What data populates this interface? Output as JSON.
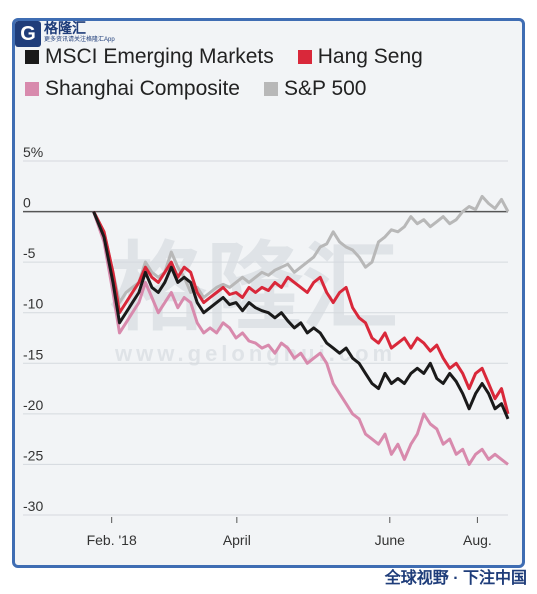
{
  "brand": {
    "logo_letter": "G",
    "name": "格隆汇",
    "tagline": "更多资讯请关注格隆汇App",
    "credit": "全球视野 · 下注中国"
  },
  "watermark": {
    "main": "格隆汇",
    "sub": "www.gelonghui.com"
  },
  "legend": [
    {
      "name": "MSCI Emerging Markets",
      "color": "#1a1a1a"
    },
    {
      "name": "Hang Seng",
      "color": "#d9283a"
    },
    {
      "name": "Shanghai Composite",
      "color": "#d88aad"
    },
    {
      "name": "S&P 500",
      "color": "#b8b8b8"
    }
  ],
  "chart_data": {
    "type": "line",
    "x_unit": "week",
    "x_tick_labels": [
      "Feb. '18",
      "April",
      "June",
      "Aug."
    ],
    "x_tick_positions": [
      1,
      9,
      18,
      27
    ],
    "y_tick_labels": [
      "5%",
      "0",
      "-5",
      "-10",
      "-15",
      "-20",
      "-25",
      "-30"
    ],
    "y_tick_values": [
      5,
      0,
      -5,
      -10,
      -15,
      -20,
      -25,
      -30
    ],
    "ylim": [
      -30,
      5
    ],
    "xlim": [
      0,
      32
    ],
    "legend_position": "top",
    "grid": "horizontal",
    "series": [
      {
        "name": "S&P 500",
        "color": "#b8b8b8",
        "values": [
          [
            0,
            0
          ],
          [
            0.8,
            -2
          ],
          [
            1.5,
            -6
          ],
          [
            2,
            -9
          ],
          [
            2.5,
            -8
          ],
          [
            3,
            -7.5
          ],
          [
            3.5,
            -7
          ],
          [
            4,
            -5
          ],
          [
            4.5,
            -6
          ],
          [
            5,
            -6.5
          ],
          [
            5.5,
            -6
          ],
          [
            6,
            -4
          ],
          [
            6.5,
            -5.5
          ],
          [
            7,
            -6.5
          ],
          [
            7.5,
            -8
          ],
          [
            8,
            -7.5
          ],
          [
            8.5,
            -8.5
          ],
          [
            9,
            -8
          ],
          [
            9.5,
            -7.5
          ],
          [
            10,
            -7.2
          ],
          [
            10.5,
            -7.5
          ],
          [
            11,
            -7
          ],
          [
            11.5,
            -6.5
          ],
          [
            12,
            -7
          ],
          [
            12.5,
            -6.5
          ],
          [
            13,
            -6
          ],
          [
            13.5,
            -6.3
          ],
          [
            14,
            -5.8
          ],
          [
            14.5,
            -5.5
          ],
          [
            15,
            -5.2
          ],
          [
            15.5,
            -6
          ],
          [
            16,
            -5.5
          ],
          [
            16.5,
            -5
          ],
          [
            17,
            -4.5
          ],
          [
            17.5,
            -3.5
          ],
          [
            18,
            -3.2
          ],
          [
            18.5,
            -2
          ],
          [
            19,
            -3
          ],
          [
            19.5,
            -3.5
          ],
          [
            20,
            -3.8
          ],
          [
            20.5,
            -4.5
          ],
          [
            21,
            -5.5
          ],
          [
            21.5,
            -5
          ],
          [
            22,
            -3
          ],
          [
            22.5,
            -2.5
          ],
          [
            23,
            -1.8
          ],
          [
            23.5,
            -2
          ],
          [
            24,
            -1.5
          ],
          [
            24.5,
            -0.5
          ],
          [
            25,
            -1.2
          ],
          [
            25.5,
            -0.8
          ],
          [
            26,
            -1.5
          ],
          [
            26.5,
            -1
          ],
          [
            27,
            -0.5
          ],
          [
            27.5,
            -1.2
          ],
          [
            28,
            -0.8
          ],
          [
            28.5,
            0
          ],
          [
            29,
            0.5
          ],
          [
            29.5,
            0.2
          ],
          [
            30,
            1.5
          ],
          [
            30.5,
            0.8
          ],
          [
            31,
            0.3
          ],
          [
            31.5,
            1.2
          ],
          [
            32,
            0
          ]
        ]
      },
      {
        "name": "Shanghai Composite",
        "color": "#d88aad",
        "values": [
          [
            0,
            0
          ],
          [
            0.8,
            -3
          ],
          [
            1.5,
            -8
          ],
          [
            2,
            -12
          ],
          [
            2.5,
            -11
          ],
          [
            3,
            -10
          ],
          [
            3.5,
            -9
          ],
          [
            4,
            -7
          ],
          [
            4.5,
            -8.5
          ],
          [
            5,
            -10
          ],
          [
            5.5,
            -9
          ],
          [
            6,
            -8
          ],
          [
            6.5,
            -9.5
          ],
          [
            7,
            -8.5
          ],
          [
            7.5,
            -9
          ],
          [
            8,
            -11
          ],
          [
            8.5,
            -12
          ],
          [
            9,
            -11.5
          ],
          [
            9.5,
            -12
          ],
          [
            10,
            -11
          ],
          [
            10.5,
            -11.5
          ],
          [
            11,
            -12.5
          ],
          [
            11.5,
            -12
          ],
          [
            12,
            -12.8
          ],
          [
            12.5,
            -13
          ],
          [
            13,
            -13.5
          ],
          [
            13.5,
            -13.2
          ],
          [
            14,
            -14
          ],
          [
            14.5,
            -13
          ],
          [
            15,
            -13.5
          ],
          [
            15.5,
            -14.5
          ],
          [
            16,
            -14
          ],
          [
            16.5,
            -15
          ],
          [
            17,
            -14.5
          ],
          [
            17.5,
            -14
          ],
          [
            18,
            -15
          ],
          [
            18.5,
            -17
          ],
          [
            19,
            -18
          ],
          [
            19.5,
            -19
          ],
          [
            20,
            -20
          ],
          [
            20.5,
            -20.5
          ],
          [
            21,
            -22
          ],
          [
            21.5,
            -22.5
          ],
          [
            22,
            -23
          ],
          [
            22.5,
            -22
          ],
          [
            23,
            -24
          ],
          [
            23.5,
            -23
          ],
          [
            24,
            -24.5
          ],
          [
            24.5,
            -23
          ],
          [
            25,
            -22
          ],
          [
            25.5,
            -20
          ],
          [
            26,
            -21
          ],
          [
            26.5,
            -21.5
          ],
          [
            27,
            -23
          ],
          [
            27.5,
            -22.5
          ],
          [
            28,
            -24
          ],
          [
            28.5,
            -23.5
          ],
          [
            29,
            -25
          ],
          [
            29.5,
            -24
          ],
          [
            30,
            -23.5
          ],
          [
            30.5,
            -24.5
          ],
          [
            31,
            -24
          ],
          [
            31.5,
            -24.5
          ],
          [
            32,
            -25
          ]
        ]
      },
      {
        "name": "Hang Seng",
        "color": "#d9283a",
        "values": [
          [
            0,
            0
          ],
          [
            0.8,
            -2
          ],
          [
            1.5,
            -6
          ],
          [
            2,
            -10
          ],
          [
            2.5,
            -9
          ],
          [
            3,
            -8
          ],
          [
            3.5,
            -7
          ],
          [
            4,
            -5.5
          ],
          [
            4.5,
            -6.5
          ],
          [
            5,
            -7
          ],
          [
            5.5,
            -6
          ],
          [
            6,
            -5
          ],
          [
            6.5,
            -6.5
          ],
          [
            7,
            -5.5
          ],
          [
            7.5,
            -6
          ],
          [
            8,
            -8
          ],
          [
            8.5,
            -9
          ],
          [
            9,
            -8.5
          ],
          [
            9.5,
            -8
          ],
          [
            10,
            -7.5
          ],
          [
            10.5,
            -8.2
          ],
          [
            11,
            -8
          ],
          [
            11.5,
            -8.5
          ],
          [
            12,
            -7.5
          ],
          [
            12.5,
            -8
          ],
          [
            13,
            -7.5
          ],
          [
            13.5,
            -7.8
          ],
          [
            14,
            -7
          ],
          [
            14.5,
            -7.5
          ],
          [
            15,
            -6.5
          ],
          [
            15.5,
            -7
          ],
          [
            16,
            -7.5
          ],
          [
            16.5,
            -8
          ],
          [
            17,
            -7
          ],
          [
            17.5,
            -6.5
          ],
          [
            18,
            -8
          ],
          [
            18.5,
            -9
          ],
          [
            19,
            -8
          ],
          [
            19.5,
            -7.5
          ],
          [
            20,
            -9.5
          ],
          [
            20.5,
            -10.5
          ],
          [
            21,
            -11
          ],
          [
            21.5,
            -12.5
          ],
          [
            22,
            -13
          ],
          [
            22.5,
            -12
          ],
          [
            23,
            -13.5
          ],
          [
            23.5,
            -13
          ],
          [
            24,
            -12.5
          ],
          [
            24.5,
            -13.5
          ],
          [
            25,
            -12.5
          ],
          [
            25.5,
            -13
          ],
          [
            26,
            -13.8
          ],
          [
            26.5,
            -13.2
          ],
          [
            27,
            -14.5
          ],
          [
            27.5,
            -15.5
          ],
          [
            28,
            -15
          ],
          [
            28.5,
            -16
          ],
          [
            29,
            -17.5
          ],
          [
            29.5,
            -16
          ],
          [
            30,
            -15.5
          ],
          [
            30.5,
            -17
          ],
          [
            31,
            -18.5
          ],
          [
            31.5,
            -17.5
          ],
          [
            32,
            -20
          ]
        ]
      },
      {
        "name": "MSCI Emerging Markets",
        "color": "#1a1a1a",
        "values": [
          [
            0,
            0
          ],
          [
            0.8,
            -2.5
          ],
          [
            1.5,
            -7
          ],
          [
            2,
            -11
          ],
          [
            2.5,
            -10
          ],
          [
            3,
            -9
          ],
          [
            3.5,
            -8
          ],
          [
            4,
            -6
          ],
          [
            4.5,
            -7.5
          ],
          [
            5,
            -8
          ],
          [
            5.5,
            -7
          ],
          [
            6,
            -5.5
          ],
          [
            6.5,
            -7
          ],
          [
            7,
            -6.5
          ],
          [
            7.5,
            -7
          ],
          [
            8,
            -9
          ],
          [
            8.5,
            -10
          ],
          [
            9,
            -9.5
          ],
          [
            9.5,
            -9
          ],
          [
            10,
            -8.5
          ],
          [
            10.5,
            -9.2
          ],
          [
            11,
            -9
          ],
          [
            11.5,
            -9.8
          ],
          [
            12,
            -9
          ],
          [
            12.5,
            -9.5
          ],
          [
            13,
            -9.8
          ],
          [
            13.5,
            -10
          ],
          [
            14,
            -10.5
          ],
          [
            14.5,
            -10
          ],
          [
            15,
            -10.8
          ],
          [
            15.5,
            -11.5
          ],
          [
            16,
            -11
          ],
          [
            16.5,
            -12
          ],
          [
            17,
            -11.5
          ],
          [
            17.5,
            -12
          ],
          [
            18,
            -13
          ],
          [
            18.5,
            -13.5
          ],
          [
            19,
            -14
          ],
          [
            19.5,
            -13.5
          ],
          [
            20,
            -14.5
          ],
          [
            20.5,
            -15
          ],
          [
            21,
            -16
          ],
          [
            21.5,
            -17
          ],
          [
            22,
            -17.5
          ],
          [
            22.5,
            -16
          ],
          [
            23,
            -17
          ],
          [
            23.5,
            -16.5
          ],
          [
            24,
            -17
          ],
          [
            24.5,
            -16
          ],
          [
            25,
            -15.5
          ],
          [
            25.5,
            -16
          ],
          [
            26,
            -15
          ],
          [
            26.5,
            -16.5
          ],
          [
            27,
            -17
          ],
          [
            27.5,
            -16
          ],
          [
            28,
            -16.8
          ],
          [
            28.5,
            -18
          ],
          [
            29,
            -19.5
          ],
          [
            29.5,
            -18
          ],
          [
            30,
            -17
          ],
          [
            30.5,
            -18
          ],
          [
            31,
            -19.5
          ],
          [
            31.5,
            -19
          ],
          [
            32,
            -20.5
          ]
        ]
      }
    ]
  }
}
